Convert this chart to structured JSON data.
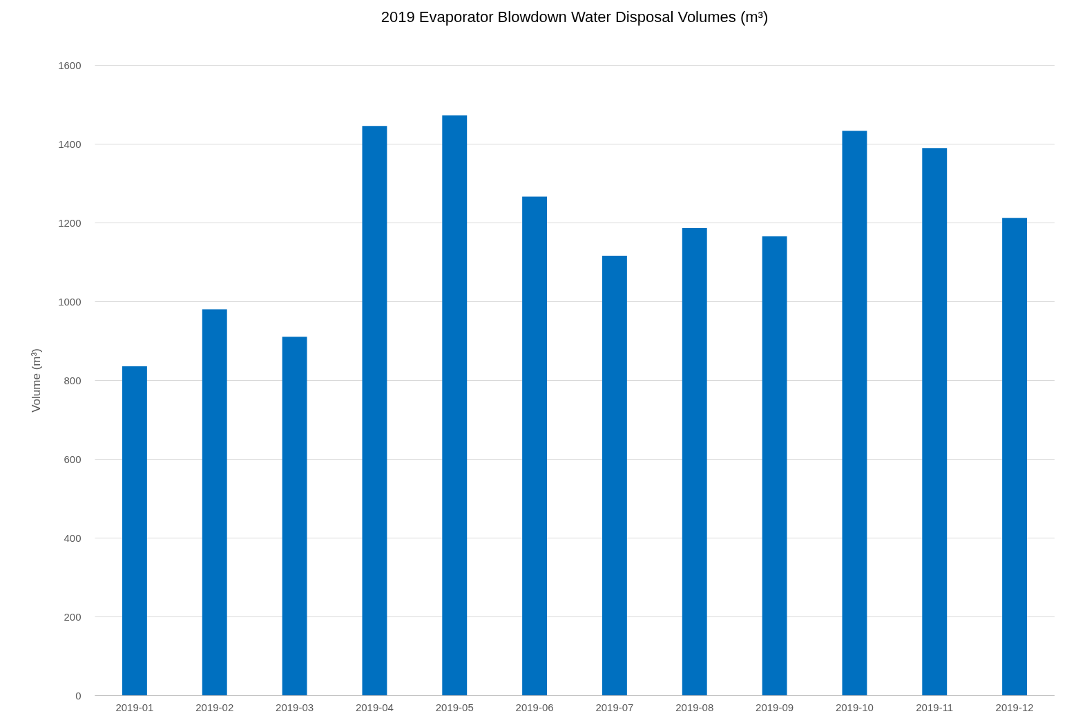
{
  "chart_data": {
    "type": "bar",
    "title": "2019 Evaporator Blowdown Water Disposal Volumes (m³)",
    "ylabel": "Volume (m³)",
    "categories": [
      "2019-01",
      "2019-02",
      "2019-03",
      "2019-04",
      "2019-05",
      "2019-06",
      "2019-07",
      "2019-08",
      "2019-09",
      "2019-10",
      "2019-11",
      "2019-12"
    ],
    "values": [
      835,
      980,
      910,
      1445,
      1472,
      1266,
      1116,
      1186,
      1165,
      1433,
      1389,
      1212
    ],
    "color": "#0070c0",
    "ylim": [
      0,
      1600
    ],
    "yticks": [
      0,
      200,
      400,
      600,
      800,
      1000,
      1200,
      1400,
      1600
    ],
    "grid": true
  }
}
